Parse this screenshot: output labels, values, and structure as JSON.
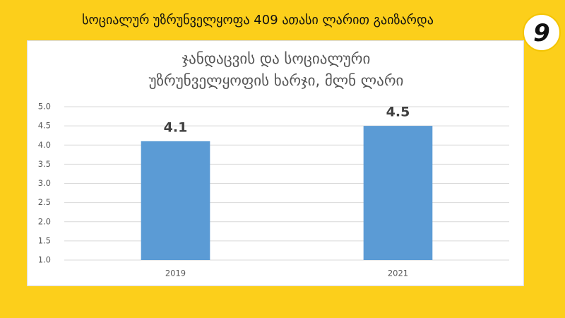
{
  "header": {
    "title": "სოციალურ უზრუნველყოფა 409 ათასი ლარით გაიზარდა",
    "badge": "9"
  },
  "chart_data": {
    "type": "bar",
    "title": "ჯანდაცვის და სოციალური უზრუნველყოფის ხარჯი, მლნ ლარი",
    "categories": [
      "2019",
      "2021"
    ],
    "values": [
      4.1,
      4.5
    ],
    "color": "#5b9bd5",
    "ylim": [
      1,
      5
    ],
    "yticks": [
      {
        "value": 1,
        "label": "1.0"
      },
      {
        "value": 1.5,
        "label": "1.5"
      },
      {
        "value": 2,
        "label": "2.0"
      },
      {
        "value": 2.5,
        "label": "2.5"
      },
      {
        "value": 3,
        "label": "3.0"
      },
      {
        "value": 3.5,
        "label": "3.5"
      },
      {
        "value": 4,
        "label": "4.0"
      },
      {
        "value": 4.5,
        "label": "4.5"
      },
      {
        "value": 5,
        "label": "5.0"
      }
    ],
    "grid": true
  }
}
